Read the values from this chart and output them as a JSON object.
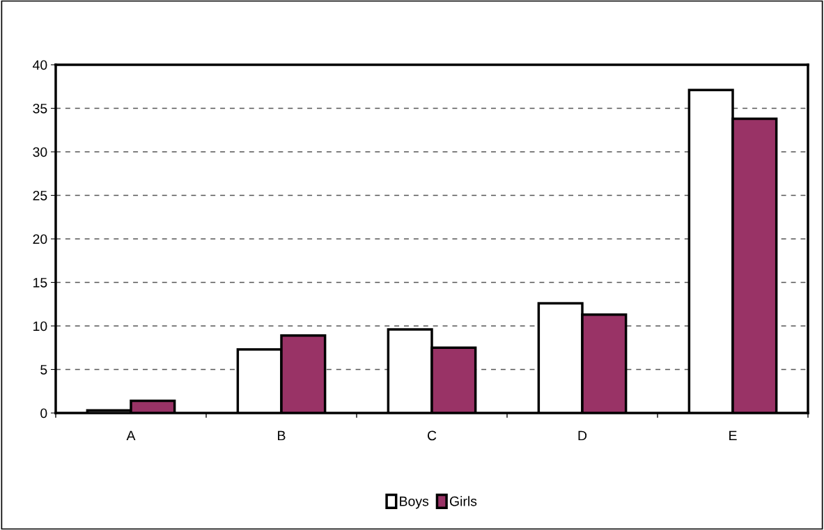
{
  "chart_data": {
    "type": "bar",
    "categories": [
      "A",
      "B",
      "C",
      "D",
      "E"
    ],
    "series": [
      {
        "name": "Boys",
        "color": "#ffffff",
        "values": [
          0.3,
          7.3,
          9.6,
          12.6,
          37.1
        ]
      },
      {
        "name": "Girls",
        "color": "#993366",
        "values": [
          1.4,
          8.9,
          7.5,
          11.3,
          33.8
        ]
      }
    ],
    "ylim": [
      0,
      40
    ],
    "yticks": [
      0,
      5,
      10,
      15,
      20,
      25,
      30,
      35,
      40
    ],
    "grid": "y",
    "legend": "bottom"
  }
}
